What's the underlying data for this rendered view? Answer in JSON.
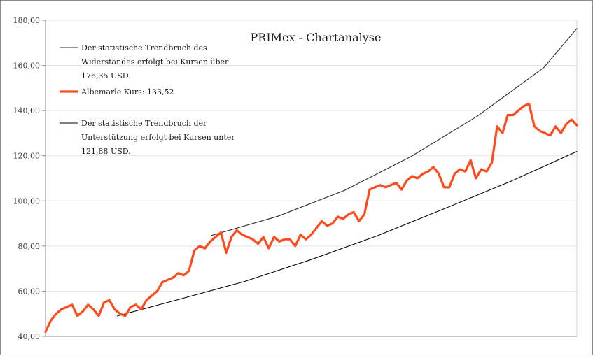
{
  "chart_data": {
    "type": "line",
    "title": "PRIMex - Chartanalyse",
    "xlabel": "",
    "ylabel": "",
    "ylim": [
      40,
      180
    ],
    "y_ticks": [
      40,
      60,
      80,
      100,
      120,
      140,
      160,
      180
    ],
    "y_tick_labels": [
      "40,00",
      "60,00",
      "80,00",
      "100,00",
      "120,00",
      "140,00",
      "160,00",
      "180,00"
    ],
    "x_index_range": [
      0,
      400
    ],
    "grid": "horizontal",
    "legend_position": "top-left",
    "series": [
      {
        "key": "resistance",
        "name": "Der statistische Trendbruch des Widerstandes erfolgt bei Kursen über 176,35 USD.",
        "color": "#2b2b2b",
        "x": [
          125,
          175,
          225,
          275,
          325,
          375,
          400
        ],
        "y": [
          84.7,
          93.2,
          104.6,
          119.6,
          137.5,
          159.0,
          176.35
        ]
      },
      {
        "key": "price",
        "name": "Albemarle Kurs: 133,52",
        "color": "#ff4a1c",
        "x": [
          0,
          4,
          8,
          12,
          16,
          20,
          24,
          28,
          32,
          36,
          40,
          44,
          48,
          52,
          56,
          60,
          64,
          68,
          72,
          76,
          80,
          84,
          88,
          92,
          96,
          100,
          104,
          108,
          112,
          116,
          120,
          124,
          128,
          132,
          136,
          140,
          144,
          148,
          152,
          156,
          160,
          164,
          168,
          172,
          176,
          180,
          184,
          188,
          192,
          196,
          200,
          204,
          208,
          212,
          216,
          220,
          224,
          228,
          232,
          236,
          240,
          244,
          248,
          252,
          256,
          260,
          264,
          268,
          272,
          276,
          280,
          284,
          288,
          292,
          296,
          300,
          304,
          308,
          312,
          316,
          320,
          324,
          328,
          332,
          336,
          340,
          344,
          348,
          352,
          356,
          360,
          364,
          368,
          372,
          376,
          380,
          384,
          388,
          392,
          396,
          400
        ],
        "y": [
          42,
          47,
          50,
          52,
          53,
          54,
          49,
          51,
          54,
          52,
          49,
          55,
          56,
          52,
          50,
          49,
          53,
          54,
          52,
          56,
          58,
          60,
          64,
          65,
          66,
          68,
          67,
          69,
          78,
          80,
          79,
          82,
          84,
          86,
          77,
          84,
          87,
          85,
          84,
          83,
          81,
          84,
          79,
          84,
          82,
          83,
          83,
          80,
          85,
          83,
          85,
          88,
          91,
          89,
          90,
          93,
          92,
          94,
          95,
          91,
          94,
          105,
          106,
          107,
          106,
          107,
          108,
          105,
          109,
          111,
          110,
          112,
          113,
          115,
          112,
          106,
          106,
          112,
          114,
          113,
          118,
          110,
          114,
          113,
          117,
          133,
          130,
          138,
          138,
          140,
          142,
          143,
          133,
          131,
          130,
          129,
          133,
          130,
          134,
          136,
          133.5
        ]
      },
      {
        "key": "support",
        "name": "Der statistische Trendbruch der Unterstützung erfolgt bei Kursen unter 121,88 USD.",
        "color": "#000000",
        "x": [
          54,
          100,
          150,
          200,
          250,
          300,
          350,
          400
        ],
        "y": [
          49.0,
          56.3,
          64.3,
          74.0,
          84.6,
          96.5,
          108.6,
          121.88
        ]
      }
    ]
  }
}
